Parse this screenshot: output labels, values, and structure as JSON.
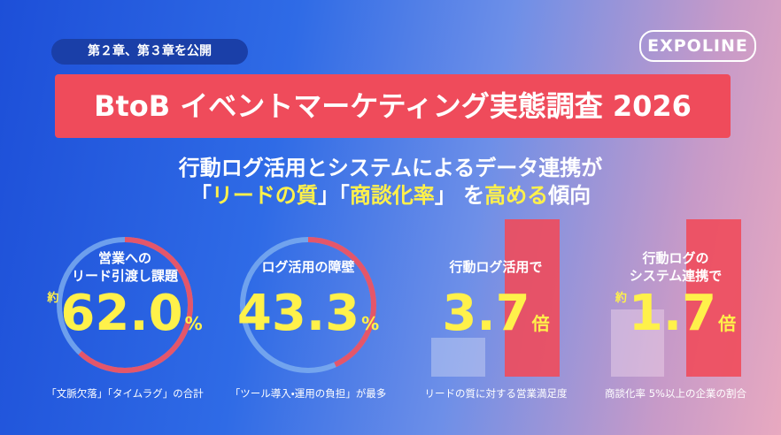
{
  "header": {
    "tag": "第２章、第３章を公開",
    "logo": "EXPOLINE",
    "title": "BtoB イベントマーケティング実態調査 2026"
  },
  "subtitle": {
    "line1": "行動ログ活用とシステムによるデータ連携が",
    "line2": [
      "「",
      "リードの質",
      "」「",
      "商談化率",
      "」 を",
      "高める",
      "傾向"
    ]
  },
  "stats": [
    {
      "label": [
        "営業への",
        "リード引渡し課題"
      ],
      "prefix": "約",
      "value": "62.0",
      "unit": "%",
      "caption": "「文脈欠落」「タイムラグ」の合計"
    },
    {
      "label": [
        "ログ活用の障壁"
      ],
      "value": "43.3",
      "unit": "%",
      "caption": "「ツール導入・運用の負担」が最多"
    },
    {
      "label": [
        "行動ログ活用で"
      ],
      "value": "3.7",
      "unit": "倍",
      "caption": "リードの質に対する営業満足度"
    },
    {
      "label": [
        "行動ログの",
        "システム連携で"
      ],
      "prefix": "約",
      "value": "1.7",
      "unit": "倍",
      "caption": "商談化率 5%以上の企業の割合"
    }
  ]
}
